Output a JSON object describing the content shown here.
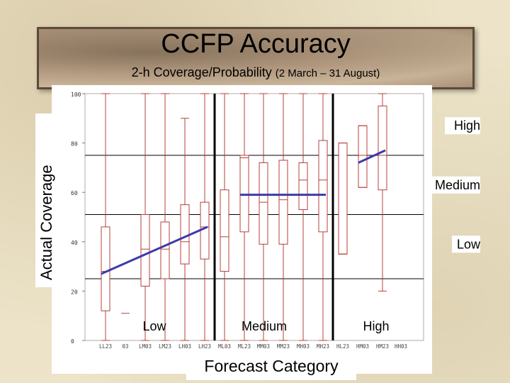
{
  "slide": {
    "title": "CCFP Accuracy",
    "subtitle_main": "2-h Coverage/Probability",
    "subtitle_dates": "(2 March – 31 August)",
    "ylabel": "Actual Coverage",
    "xlabel": "Forecast Category"
  },
  "chart_data": {
    "type": "box",
    "title": "",
    "xlabel": "Forecast Category",
    "ylabel": "Actual Coverage",
    "ylim": [
      0,
      100
    ],
    "y_ticks": [
      "0",
      "20",
      "40",
      "60",
      "80",
      "100"
    ],
    "group_labels": [
      "Low",
      "Medium",
      "High"
    ],
    "y_level_labels": [
      {
        "text": "High",
        "y": 87
      },
      {
        "text": "Medium",
        "y": 63
      },
      {
        "text": "Low",
        "y": 39
      }
    ],
    "horizontal_gridlines": [
      25,
      51,
      75
    ],
    "group_separators_after": [
      5,
      11
    ],
    "boxes": [
      {
        "label": "LL23",
        "min": 0,
        "q1": 12,
        "median": 28,
        "q3": 46,
        "max": 100
      },
      {
        "label": "03",
        "min": 11,
        "q1": 11,
        "median": 11,
        "q3": 11,
        "max": 11
      },
      {
        "label": "LM03",
        "min": 0,
        "q1": 22,
        "median": 37,
        "q3": 51,
        "max": 100
      },
      {
        "label": "LM23",
        "min": 0,
        "q1": 25,
        "median": 37,
        "q3": 48,
        "max": 100
      },
      {
        "label": "LH03",
        "min": 0,
        "q1": 31,
        "median": 40,
        "q3": 55,
        "max": 90
      },
      {
        "label": "LH23",
        "min": 0,
        "q1": 33,
        "median": 46,
        "q3": 56,
        "max": 100
      },
      {
        "label": "ML03",
        "min": 0,
        "q1": 28,
        "median": 42,
        "q3": 61,
        "max": 100
      },
      {
        "label": "ML23",
        "min": 0,
        "q1": 44,
        "median": 74,
        "q3": 75,
        "max": 100
      },
      {
        "label": "MM03",
        "min": 0,
        "q1": 39,
        "median": 56,
        "q3": 72,
        "max": 100
      },
      {
        "label": "MM23",
        "min": 0,
        "q1": 39,
        "median": 57,
        "q3": 73,
        "max": 100
      },
      {
        "label": "MH03",
        "min": 0,
        "q1": 53,
        "median": 65,
        "q3": 72,
        "max": 100
      },
      {
        "label": "MH23",
        "min": 0,
        "q1": 44,
        "median": 65,
        "q3": 81,
        "max": 100
      },
      {
        "label": "HL23",
        "min": 35,
        "q1": 35,
        "median": 35,
        "q3": 80,
        "max": 80
      },
      {
        "label": "HM03",
        "min": 62,
        "q1": 62,
        "median": 75,
        "q3": 87,
        "max": 87
      },
      {
        "label": "HM23",
        "min": 20,
        "q1": 61,
        "median": 75,
        "q3": 95,
        "max": 100
      },
      {
        "label": "HH03",
        "min": 0,
        "q1": 0,
        "median": 0,
        "q3": 0,
        "max": 0
      }
    ],
    "x_tick_labels": [
      "LL23",
      "03",
      "LM03",
      "LM23",
      "LH03",
      "LH23",
      "ML03",
      "ML23",
      "MM03",
      "MM23",
      "MH03",
      "MH23",
      "HL23",
      "HM03",
      "HM23",
      "HH03"
    ],
    "trend_lines": [
      {
        "group": "Low",
        "from": {
          "box": 0,
          "y": 27
        },
        "to": {
          "box": 5,
          "y": 46
        }
      },
      {
        "group": "Medium",
        "from": {
          "box": 7,
          "y": 59
        },
        "to": {
          "box": 11,
          "y": 59
        }
      },
      {
        "group": "High",
        "from": {
          "box": 13,
          "y": 72
        },
        "to": {
          "box": 14,
          "y": 77
        }
      }
    ],
    "colors": {
      "box": "#b5403a",
      "trend": "#3b3ba8",
      "separator": "#000000",
      "grid": "#000000"
    }
  }
}
